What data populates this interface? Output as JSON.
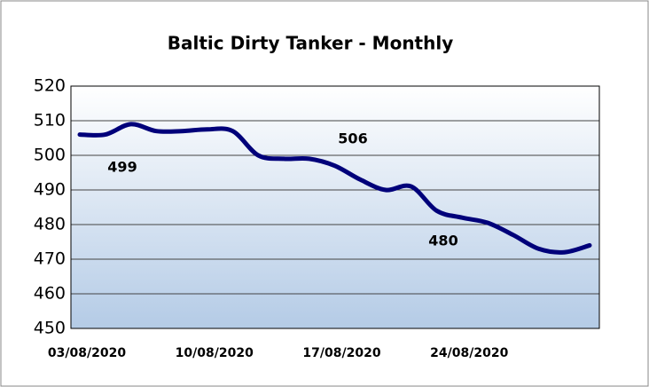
{
  "chart_data": {
    "type": "line",
    "title": "Baltic Dirty Tanker - Monthly",
    "categories": [
      "03/08/2020",
      null,
      null,
      null,
      null,
      "10/08/2020",
      null,
      null,
      null,
      null,
      "17/08/2020",
      null,
      null,
      null,
      null,
      "24/08/2020",
      null,
      null,
      null,
      null,
      null
    ],
    "series": [
      {
        "name": "Baltic Dirty Tanker",
        "color": "#00007a",
        "values": [
          506,
          506,
          509,
          507,
          507,
          507.5,
          507,
          500,
          499,
          499,
          497,
          493,
          490,
          491,
          484,
          482,
          480.5,
          477,
          473,
          472,
          474
        ]
      }
    ],
    "ylim": [
      450,
      520
    ],
    "yticks": [
      450,
      460,
      470,
      480,
      490,
      500,
      510,
      520
    ],
    "grid": true,
    "annotations": [
      "499",
      "506",
      "480"
    ]
  }
}
